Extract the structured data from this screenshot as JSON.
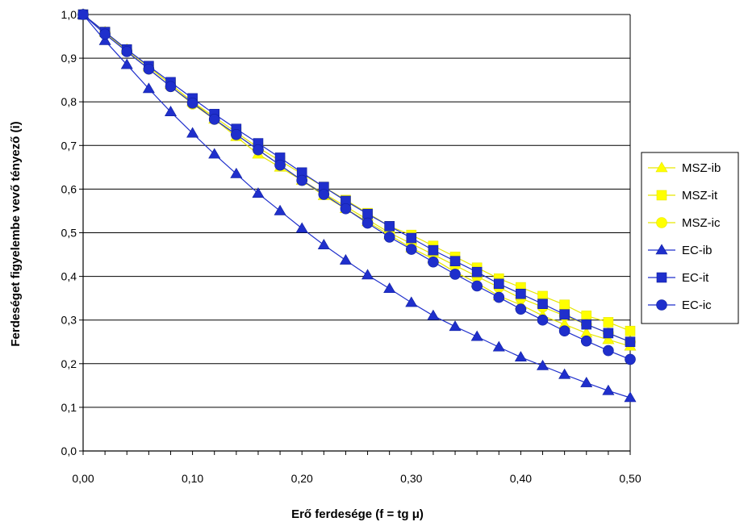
{
  "chart_data": {
    "type": "line",
    "xlabel": "Erő ferdesége (f = tg μ)",
    "ylabel": "Ferdeséget figyelembe vevő tényező (i)",
    "xlim": [
      0,
      0.5
    ],
    "ylim": [
      0,
      1.0
    ],
    "x_ticks": [
      "0,00",
      "0,10",
      "0,20",
      "0,30",
      "0,40",
      "0,50"
    ],
    "x_tick_values": [
      0,
      0.1,
      0.2,
      0.3,
      0.4,
      0.5
    ],
    "y_ticks": [
      "0,0",
      "0,1",
      "0,2",
      "0,3",
      "0,4",
      "0,5",
      "0,6",
      "0,7",
      "0,8",
      "0,9",
      "1,0"
    ],
    "y_tick_values": [
      0,
      0.1,
      0.2,
      0.3,
      0.4,
      0.5,
      0.6,
      0.7,
      0.8,
      0.9,
      1.0
    ],
    "grid": "horizontal",
    "legend_position": "right",
    "x": [
      0,
      0.02,
      0.04,
      0.06,
      0.08,
      0.1,
      0.12,
      0.14,
      0.16,
      0.18,
      0.2,
      0.22,
      0.24,
      0.26,
      0.28,
      0.3,
      0.32,
      0.34,
      0.36,
      0.38,
      0.4,
      0.42,
      0.44,
      0.46,
      0.48,
      0.5
    ],
    "series": [
      {
        "name": "MSZ-ib",
        "color": "#ffff00",
        "marker": "triangle",
        "values": [
          1.0,
          0.96,
          0.92,
          0.88,
          0.84,
          0.8,
          0.76,
          0.72,
          0.68,
          0.65,
          0.62,
          0.585,
          0.555,
          0.525,
          0.495,
          0.465,
          0.44,
          0.41,
          0.385,
          0.355,
          0.335,
          0.31,
          0.29,
          0.27,
          0.255,
          0.24
        ]
      },
      {
        "name": "MSZ-it",
        "color": "#ffff00",
        "marker": "square",
        "values": [
          1.0,
          0.96,
          0.92,
          0.88,
          0.84,
          0.8,
          0.765,
          0.73,
          0.695,
          0.665,
          0.635,
          0.605,
          0.575,
          0.545,
          0.515,
          0.495,
          0.47,
          0.445,
          0.42,
          0.395,
          0.375,
          0.355,
          0.335,
          0.31,
          0.295,
          0.275
        ]
      },
      {
        "name": "MSZ-ic",
        "color": "#ffff00",
        "marker": "circle",
        "values": [
          1.0,
          0.958,
          0.917,
          0.875,
          0.835,
          0.795,
          0.76,
          0.725,
          0.69,
          0.655,
          0.62,
          0.59,
          0.56,
          0.53,
          0.5,
          0.475,
          0.45,
          0.425,
          0.4,
          0.375,
          0.35,
          0.33,
          0.31,
          0.29,
          0.27,
          0.25
        ]
      },
      {
        "name": "EC-ib",
        "color": "#1f2fcc",
        "marker": "triangle",
        "values": [
          1.0,
          0.94,
          0.885,
          0.83,
          0.777,
          0.728,
          0.68,
          0.635,
          0.59,
          0.55,
          0.51,
          0.472,
          0.437,
          0.403,
          0.372,
          0.34,
          0.31,
          0.285,
          0.262,
          0.238,
          0.215,
          0.195,
          0.175,
          0.156,
          0.138,
          0.122
        ]
      },
      {
        "name": "EC-it",
        "color": "#1f2fcc",
        "marker": "square",
        "values": [
          1.0,
          0.96,
          0.92,
          0.882,
          0.845,
          0.808,
          0.772,
          0.738,
          0.705,
          0.672,
          0.638,
          0.605,
          0.573,
          0.543,
          0.515,
          0.488,
          0.46,
          0.435,
          0.41,
          0.383,
          0.36,
          0.337,
          0.313,
          0.29,
          0.27,
          0.25
        ]
      },
      {
        "name": "EC-ic",
        "color": "#1f2fcc",
        "marker": "circle",
        "values": [
          1.0,
          0.955,
          0.915,
          0.875,
          0.835,
          0.797,
          0.76,
          0.725,
          0.69,
          0.655,
          0.62,
          0.588,
          0.555,
          0.522,
          0.49,
          0.462,
          0.433,
          0.405,
          0.378,
          0.352,
          0.325,
          0.3,
          0.275,
          0.252,
          0.23,
          0.21
        ]
      }
    ]
  }
}
